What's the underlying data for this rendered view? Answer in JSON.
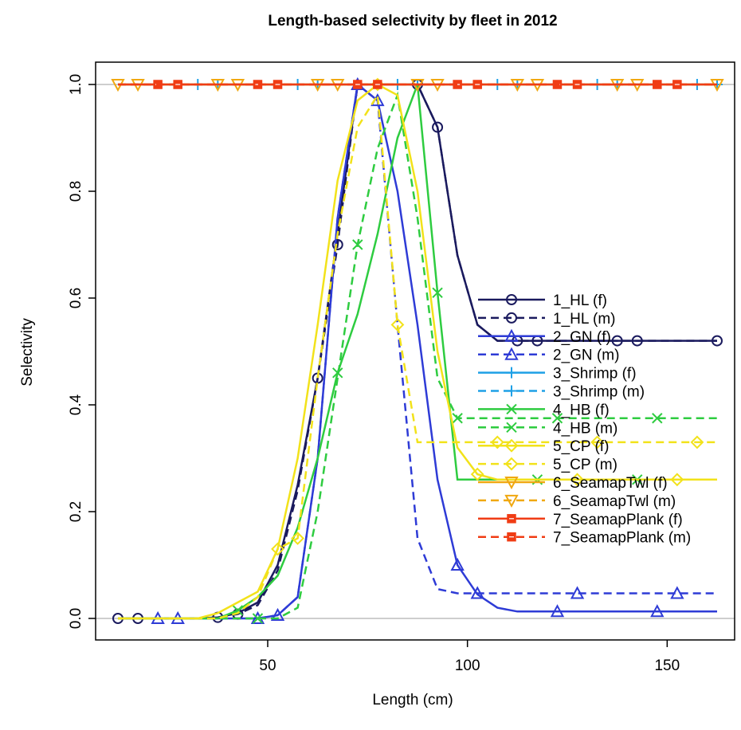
{
  "chart_data": {
    "type": "line",
    "title": "Length-based selectivity by fleet in 2012",
    "xlabel": "Length (cm)",
    "ylabel": "Selectivity",
    "xlim": [
      10,
      165
    ],
    "ylim": [
      0,
      1
    ],
    "x_ticks": [
      50,
      100,
      150
    ],
    "y_ticks": [
      0.0,
      0.2,
      0.4,
      0.6,
      0.8,
      1.0
    ],
    "x_tick_labels": [
      "50",
      "100",
      "150"
    ],
    "y_tick_labels": [
      "0.0",
      "0.2",
      "0.4",
      "0.6",
      "0.8",
      "1.0"
    ],
    "reference_lines": [
      0,
      1
    ],
    "reference_line_color": "#BEBEBE",
    "legend_position": "right",
    "x": [
      12.5,
      17.5,
      22.5,
      27.5,
      32.5,
      37.5,
      42.5,
      47.5,
      52.5,
      57.5,
      62.5,
      67.5,
      72.5,
      77.5,
      82.5,
      87.5,
      92.5,
      97.5,
      102.5,
      107.5,
      112.5,
      117.5,
      122.5,
      127.5,
      132.5,
      137.5,
      142.5,
      147.5,
      152.5,
      157.5,
      162.5
    ],
    "series": [
      {
        "name": "1_HL (f)",
        "color": "#1A1A5E",
        "dash": "solid",
        "marker": "circle",
        "marker_offset": 0,
        "values": [
          0,
          0,
          0,
          0,
          0,
          0.002,
          0.01,
          0.03,
          0.1,
          0.25,
          0.45,
          0.72,
          1.0,
          1.0,
          1.0,
          1.0,
          0.92,
          0.68,
          0.55,
          0.52,
          0.52,
          0.52,
          0.52,
          0.52,
          0.52,
          0.52,
          0.52,
          0.52,
          0.52,
          0.52,
          0.52
        ]
      },
      {
        "name": "1_HL (m)",
        "color": "#1A1A5E",
        "dash": "dashed",
        "marker": "circle",
        "marker_offset": 1,
        "values": [
          0,
          0,
          0,
          0,
          0,
          0.002,
          0.008,
          0.025,
          0.09,
          0.24,
          0.45,
          0.7,
          1.0,
          1.0,
          1.0,
          1.0,
          0.92,
          0.68,
          0.55,
          0.52,
          0.52,
          0.52,
          0.52,
          0.52,
          0.52,
          0.52,
          0.52,
          0.52,
          0.52,
          0.52,
          0.52
        ]
      },
      {
        "name": "2_GN (f)",
        "color": "#2E3BD6",
        "dash": "solid",
        "marker": "triangle",
        "marker_offset": 2,
        "values": [
          0,
          0,
          0,
          0,
          0,
          0,
          0,
          0,
          0.006,
          0.04,
          0.3,
          0.75,
          1.0,
          0.97,
          0.8,
          0.55,
          0.26,
          0.1,
          0.045,
          0.02,
          0.013,
          0.013,
          0.013,
          0.013,
          0.013,
          0.013,
          0.013,
          0.013,
          0.013,
          0.013,
          0.013
        ]
      },
      {
        "name": "2_GN (m)",
        "color": "#2E3BD6",
        "dash": "dashed",
        "marker": "triangle",
        "marker_offset": 3,
        "values": [
          0,
          0,
          0,
          0,
          0,
          0,
          0,
          0,
          0.006,
          0.04,
          0.3,
          0.75,
          1.0,
          0.97,
          0.55,
          0.15,
          0.055,
          0.047,
          0.047,
          0.047,
          0.047,
          0.047,
          0.047,
          0.047,
          0.047,
          0.047,
          0.047,
          0.047,
          0.047,
          0.047,
          0.047
        ]
      },
      {
        "name": "3_Shrimp (f)",
        "color": "#1EA0E6",
        "dash": "solid",
        "marker": "plus",
        "marker_offset": 4,
        "values": [
          1,
          1,
          1,
          1,
          1,
          1,
          1,
          1,
          1,
          1,
          1,
          1,
          1,
          1,
          1,
          1,
          1,
          1,
          1,
          1,
          1,
          1,
          1,
          1,
          1,
          1,
          1,
          1,
          1,
          1,
          1
        ]
      },
      {
        "name": "3_Shrimp (m)",
        "color": "#1EA0E6",
        "dash": "dashed",
        "marker": "plus",
        "marker_offset": 5,
        "values": [
          1,
          1,
          1,
          1,
          1,
          1,
          1,
          1,
          1,
          1,
          1,
          1,
          1,
          1,
          1,
          1,
          1,
          1,
          1,
          1,
          1,
          1,
          1,
          1,
          1,
          1,
          1,
          1,
          1,
          1,
          1
        ]
      },
      {
        "name": "4_HB (f)",
        "color": "#2ECC40",
        "dash": "solid",
        "marker": "cross",
        "marker_offset": 6,
        "values": [
          0,
          0,
          0,
          0,
          0,
          0,
          0.015,
          0.04,
          0.08,
          0.17,
          0.3,
          0.46,
          0.57,
          0.72,
          0.9,
          1.0,
          0.61,
          0.26,
          0.26,
          0.26,
          0.26,
          0.26,
          0.26,
          0.26,
          0.26,
          0.26,
          0.26,
          0.26,
          0.26,
          0.26,
          0.26
        ]
      },
      {
        "name": "4_HB (m)",
        "color": "#2ECC40",
        "dash": "dashed",
        "marker": "cross",
        "marker_offset": 7,
        "values": [
          0,
          0,
          0,
          0,
          0,
          0,
          0,
          0,
          0,
          0.02,
          0.2,
          0.45,
          0.7,
          0.88,
          0.98,
          0.75,
          0.45,
          0.375,
          0.375,
          0.375,
          0.375,
          0.375,
          0.375,
          0.375,
          0.375,
          0.375,
          0.375,
          0.375,
          0.375,
          0.375,
          0.375
        ]
      },
      {
        "name": "5_CP (f)",
        "color": "#F2E21A",
        "dash": "solid",
        "marker": "diamond",
        "marker_offset": 8,
        "values": [
          0,
          0,
          0,
          0,
          0,
          0.01,
          0.03,
          0.05,
          0.13,
          0.3,
          0.55,
          0.82,
          0.97,
          1.0,
          0.98,
          0.8,
          0.5,
          0.32,
          0.27,
          0.26,
          0.26,
          0.26,
          0.26,
          0.26,
          0.26,
          0.26,
          0.26,
          0.26,
          0.26,
          0.26,
          0.26
        ]
      },
      {
        "name": "5_CP (m)",
        "color": "#F2E21A",
        "dash": "dashed",
        "marker": "diamond",
        "marker_offset": 9,
        "values": [
          0,
          0,
          0,
          0,
          0,
          0,
          0.01,
          0.04,
          0.13,
          0.15,
          0.45,
          0.72,
          0.92,
          0.98,
          0.55,
          0.33,
          0.33,
          0.33,
          0.33,
          0.33,
          0.33,
          0.33,
          0.33,
          0.33,
          0.33,
          0.33,
          0.33,
          0.33,
          0.33,
          0.33,
          0.33
        ]
      },
      {
        "name": "6_SeamapTwl (f)",
        "color": "#F0A810",
        "dash": "solid",
        "marker": "triangle-down",
        "marker_offset": 10,
        "values": [
          1,
          1,
          1,
          1,
          1,
          1,
          1,
          1,
          1,
          1,
          1,
          1,
          1,
          1,
          1,
          1,
          1,
          1,
          1,
          1,
          1,
          1,
          1,
          1,
          1,
          1,
          1,
          1,
          1,
          1,
          1
        ]
      },
      {
        "name": "6_SeamapTwl (m)",
        "color": "#F0A810",
        "dash": "dashed",
        "marker": "triangle-down",
        "marker_offset": 11,
        "values": [
          1,
          1,
          1,
          1,
          1,
          1,
          1,
          1,
          1,
          1,
          1,
          1,
          1,
          1,
          1,
          1,
          1,
          1,
          1,
          1,
          1,
          1,
          1,
          1,
          1,
          1,
          1,
          1,
          1,
          1,
          1
        ]
      },
      {
        "name": "7_SeamapPlank (f)",
        "color": "#F03C14",
        "dash": "solid",
        "marker": "square",
        "marker_offset": 12,
        "values": [
          1,
          1,
          1,
          1,
          1,
          1,
          1,
          1,
          1,
          1,
          1,
          1,
          1,
          1,
          1,
          1,
          1,
          1,
          1,
          1,
          1,
          1,
          1,
          1,
          1,
          1,
          1,
          1,
          1,
          1,
          1
        ]
      },
      {
        "name": "7_SeamapPlank (m)",
        "color": "#F03C14",
        "dash": "dashed",
        "marker": "square",
        "marker_offset": 13,
        "values": [
          1,
          1,
          1,
          1,
          1,
          1,
          1,
          1,
          1,
          1,
          1,
          1,
          1,
          1,
          1,
          1,
          1,
          1,
          1,
          1,
          1,
          1,
          1,
          1,
          1,
          1,
          1,
          1,
          1,
          1,
          1
        ]
      }
    ]
  }
}
